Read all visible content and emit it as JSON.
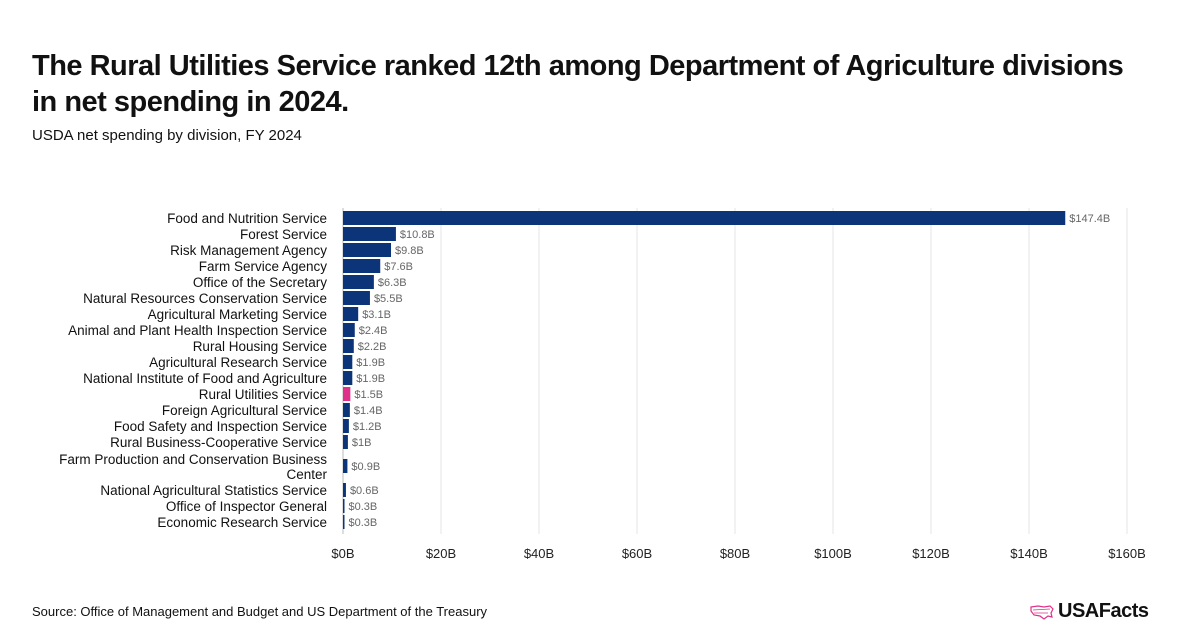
{
  "title": "The Rural Utilities Service ranked 12th among Department of Agriculture divisions in net spending in 2024.",
  "subtitle": "USDA net spending by division, FY 2024",
  "source": "Source: Office of Management and Budget and US Department of the Treasury",
  "logo": "USAFacts",
  "colors": {
    "bar": "#0b3479",
    "highlight": "#e0318a",
    "grid": "#e6e6e6"
  },
  "chart_data": {
    "type": "bar",
    "orientation": "horizontal",
    "title": "The Rural Utilities Service ranked 12th among Department of Agriculture divisions in net spending in 2024.",
    "subtitle": "USDA net spending by division, FY 2024",
    "xlim": [
      0,
      160
    ],
    "grid": true,
    "highlight": "Rural Utilities Service",
    "ticks": [
      0,
      20,
      40,
      60,
      80,
      100,
      120,
      140,
      160
    ],
    "tick_labels": [
      "$0B",
      "$20B",
      "$40B",
      "$60B",
      "$80B",
      "$100B",
      "$120B",
      "$140B",
      "$160B"
    ],
    "categories": [
      "Food and Nutrition Service",
      "Forest Service",
      "Risk Management Agency",
      "Farm Service Agency",
      "Office of the Secretary",
      "Natural Resources Conservation Service",
      "Agricultural Marketing Service",
      "Animal and Plant Health Inspection Service",
      "Rural Housing Service",
      "Agricultural Research Service",
      "National Institute of Food and Agriculture",
      "Rural Utilities Service",
      "Foreign Agricultural Service",
      "Food Safety and Inspection Service",
      "Rural Business-Cooperative Service",
      "Farm Production and Conservation Business Center",
      "National Agricultural Statistics Service",
      "Office of Inspector General",
      "Economic Research Service"
    ],
    "values": [
      147.4,
      10.8,
      9.8,
      7.6,
      6.3,
      5.5,
      3.1,
      2.4,
      2.2,
      1.9,
      1.9,
      1.5,
      1.4,
      1.2,
      1.0,
      0.9,
      0.6,
      0.3,
      0.3
    ],
    "data_labels": [
      "$147.4B",
      "$10.8B",
      "$9.8B",
      "$7.6B",
      "$6.3B",
      "$5.5B",
      "$3.1B",
      "$2.4B",
      "$2.2B",
      "$1.9B",
      "$1.9B",
      "$1.5B",
      "$1.4B",
      "$1.2B",
      "$1B",
      "$0.9B",
      "$0.6B",
      "$0.3B",
      "$0.3B"
    ]
  }
}
